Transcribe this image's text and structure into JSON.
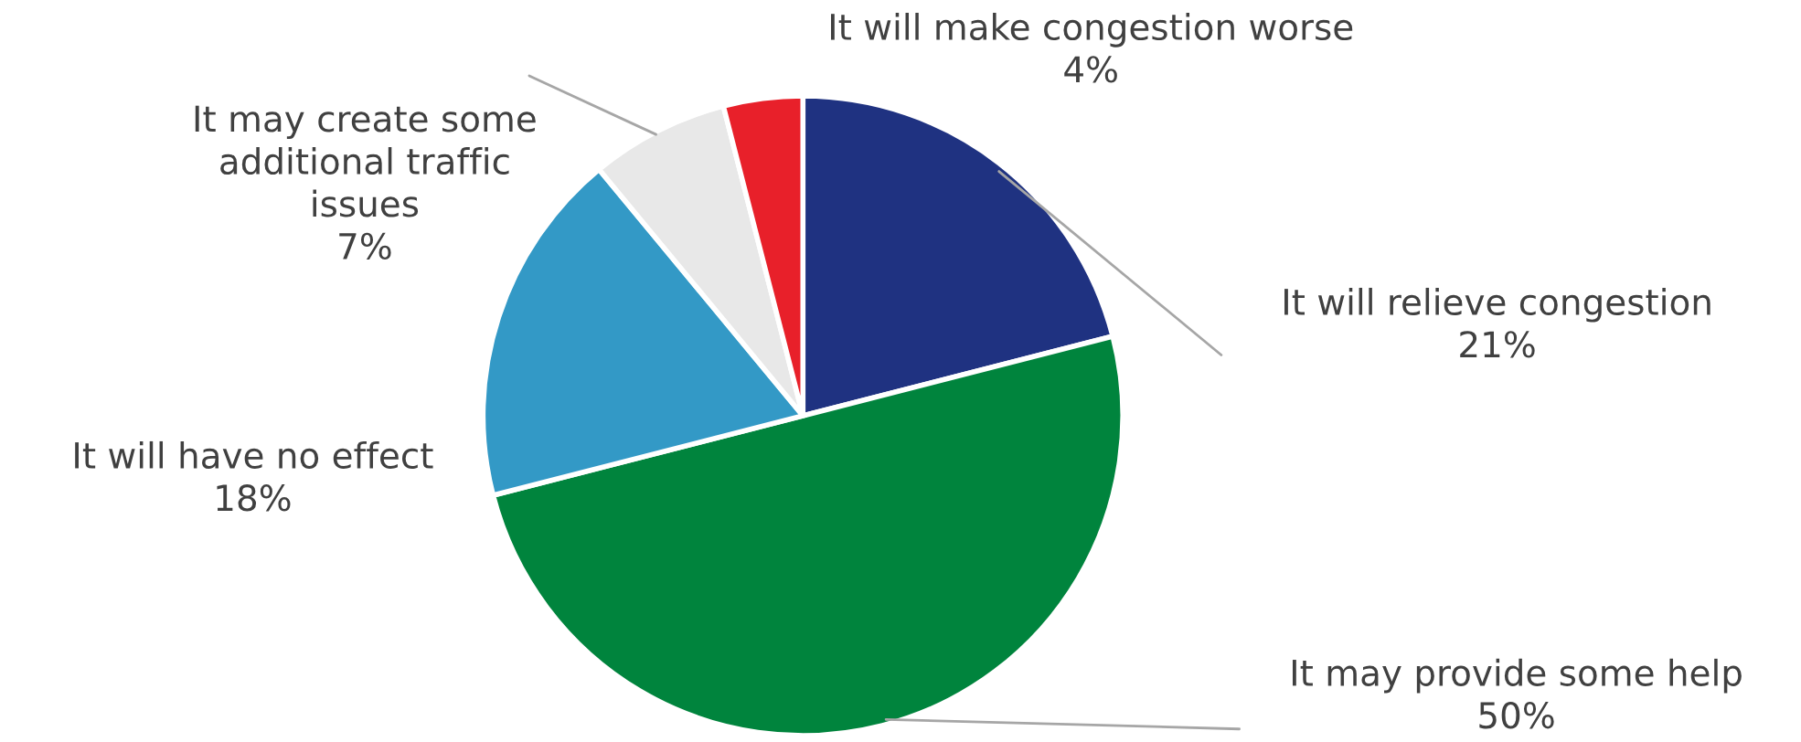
{
  "chart_data": {
    "type": "pie",
    "categories": [
      "It will relieve congestion",
      "It may provide some help",
      "It will have no effect",
      "It may create some additional traffic issues",
      "It will make congestion worse"
    ],
    "values": [
      21,
      50,
      18,
      7,
      4
    ],
    "colors": [
      "#1f3281",
      "#00843d",
      "#3399c6",
      "#e8e8e8",
      "#e8202a"
    ],
    "value_labels": [
      "21%",
      "50%",
      "18%",
      "7%",
      "4%"
    ],
    "legend": false
  }
}
